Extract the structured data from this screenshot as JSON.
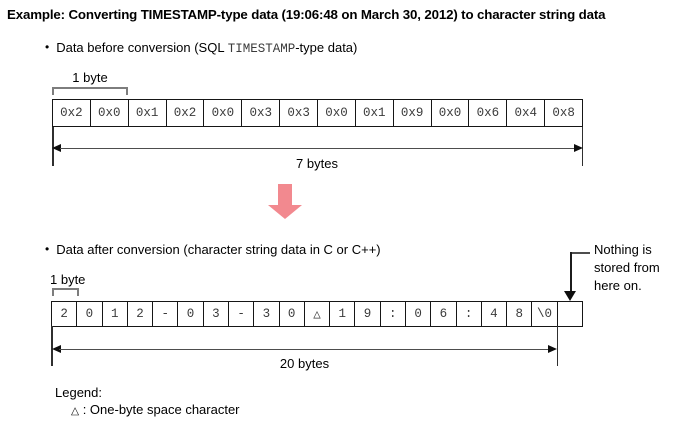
{
  "title": "Example: Converting TIMESTAMP-type data (19:06:48 on March 30, 2012) to character string data",
  "before": {
    "bullet": {
      "prefix": "Data before conversion (SQL ",
      "code": "TIMESTAMP",
      "suffix": "-type data)"
    },
    "byte_label": "1 byte",
    "cells": [
      "0x2",
      "0x0",
      "0x1",
      "0x2",
      "0x0",
      "0x3",
      "0x3",
      "0x0",
      "0x1",
      "0x9",
      "0x0",
      "0x6",
      "0x4",
      "0x8"
    ],
    "span_label": "7 bytes"
  },
  "after": {
    "bullet": "Data after conversion (character string data in C or C++)",
    "byte_label": "1 byte",
    "cells": [
      "2",
      "0",
      "1",
      "2",
      "-",
      "0",
      "3",
      "-",
      "3",
      "0",
      "△",
      "1",
      "9",
      ":",
      "0",
      "6",
      ":",
      "4",
      "8",
      "\\0",
      ""
    ],
    "span_label": "20 bytes",
    "note": "Nothing is stored from here on."
  },
  "legend": {
    "heading": "Legend:",
    "symbol": "△",
    "description": ": One-byte space character"
  },
  "colors": {
    "highlight_arrow": "#f2898f"
  }
}
